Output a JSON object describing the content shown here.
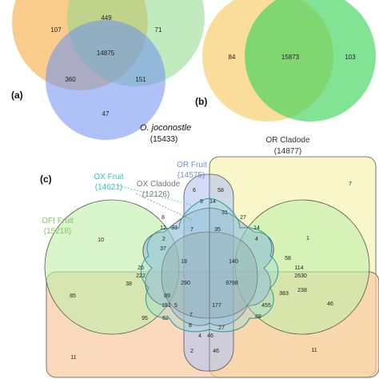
{
  "panel_a": {
    "panel_label": "(a)",
    "set_label": "O. joconostle",
    "set_count": "(15433)",
    "regions": [
      "107",
      "449",
      "71",
      "14875",
      "360",
      "151",
      "47"
    ],
    "colors": {
      "orange": "#F6B04E",
      "green": "#8FD98A",
      "blue": "#6C8FF0"
    }
  },
  "panel_b": {
    "panel_label": "(b)",
    "regions": [
      "84",
      "15873",
      "103"
    ],
    "colors": {
      "yellow": "#F8D27A",
      "green": "#3FD45A"
    }
  },
  "panel_c": {
    "panel_label": "(c)",
    "sets": [
      {
        "name": "OR Cladode",
        "count": "(14877)",
        "color": "#333333"
      },
      {
        "name": "OR Fruit",
        "count": "(14575)",
        "color": "#7A8FD0"
      },
      {
        "name": "OX Cladode",
        "count": "(12126)",
        "color": "#888888"
      },
      {
        "name": "OX Fruit",
        "count": "(14621)",
        "color": "#2DC7C7"
      },
      {
        "name": "OFI Fruit",
        "count": "(15218)",
        "color": "#7FC95E"
      }
    ],
    "regions": [
      "6",
      "58",
      "7",
      "9",
      "14",
      "8",
      "12",
      "31",
      "27",
      "33",
      "35",
      "14",
      "7",
      "2",
      "37",
      "10",
      "1",
      "4",
      "58",
      "19",
      "140",
      "26",
      "222",
      "114",
      "2630",
      "38",
      "238",
      "290",
      "9798",
      "85",
      "46",
      "383",
      "89",
      "151",
      "177",
      "455",
      "5",
      "95",
      "52",
      "7",
      "88",
      "8",
      "4",
      "27",
      "46",
      "11",
      "2",
      "46",
      "11"
    ],
    "colors": {
      "fill_green": "#BFEFA8",
      "fill_yellow": "#F7F4B8",
      "fill_orange": "#F9C9A0",
      "fill_blue": "#B8C8F0",
      "fill_teal": "#8FD8D8"
    }
  }
}
